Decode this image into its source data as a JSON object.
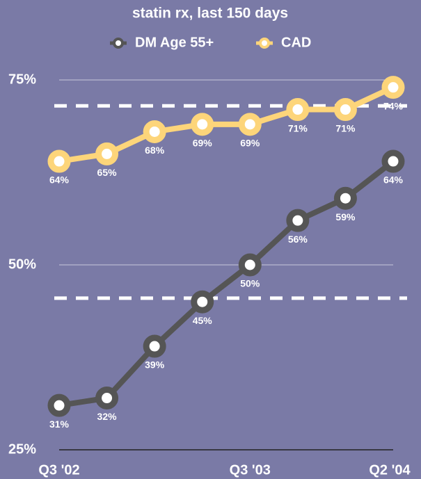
{
  "chart_data": {
    "type": "line",
    "title": "statin rx, last 150 days",
    "categories": [
      "Q3 '02",
      null,
      null,
      null,
      "Q3 '03",
      null,
      null,
      "Q2 '04"
    ],
    "series": [
      {
        "name": "DM Age 55+",
        "color": "#555555",
        "values": [
          31,
          32,
          39,
          45,
          50,
          56,
          59,
          64
        ],
        "value_labels": [
          "31%",
          "32%",
          "39%",
          "45%",
          "50%",
          "56%",
          "59%",
          "64%"
        ]
      },
      {
        "name": "CAD",
        "color": "#fdd57a",
        "values": [
          64,
          65,
          68,
          69,
          69,
          71,
          71,
          74
        ],
        "value_labels": [
          "64%",
          "65%",
          "68%",
          "69%",
          "69%",
          "71%",
          "71%",
          "74%"
        ]
      }
    ],
    "ylim": [
      25,
      75
    ],
    "yticks": [
      {
        "value": 25,
        "label": "25%"
      },
      {
        "value": 50,
        "label": "50%"
      },
      {
        "value": 75,
        "label": "75%"
      }
    ],
    "reference_lines": [
      71.5,
      45.5
    ],
    "grid": true,
    "legend": "top"
  }
}
